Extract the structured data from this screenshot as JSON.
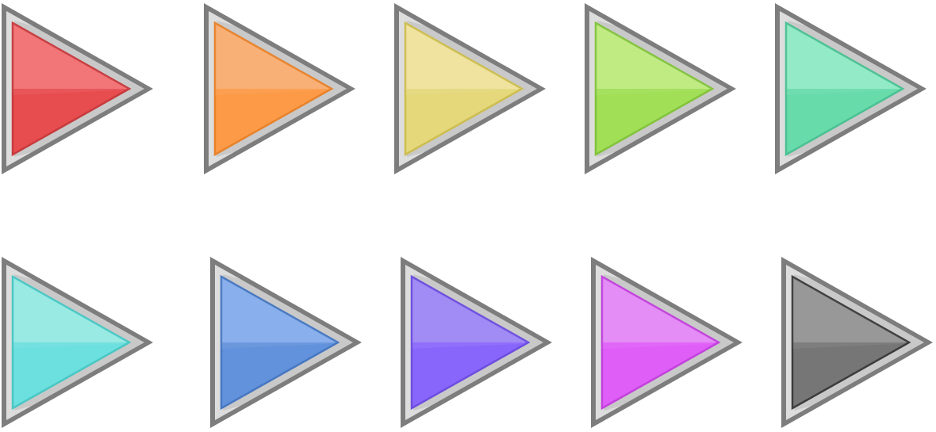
{
  "buttons": [
    {
      "icon": "play-triangle-icon",
      "color_name": "red",
      "fill_top": "#f26d70",
      "fill_bottom": "#e74c4f",
      "stroke": "#c73b3e"
    },
    {
      "icon": "play-triangle-icon",
      "color_name": "orange",
      "fill_top": "#f8ac6e",
      "fill_bottom": "#fc9a47",
      "stroke": "#e8822a"
    },
    {
      "icon": "play-triangle-icon",
      "color_name": "yellow",
      "fill_top": "#eee29a",
      "fill_bottom": "#e4d87b",
      "stroke": "#cdbd4f"
    },
    {
      "icon": "play-triangle-icon",
      "color_name": "lime",
      "fill_top": "#bdea7c",
      "fill_bottom": "#a0df56",
      "stroke": "#82c33c"
    },
    {
      "icon": "play-triangle-icon",
      "color_name": "mint",
      "fill_top": "#8de9c3",
      "fill_bottom": "#68dbaa",
      "stroke": "#49c192"
    },
    {
      "icon": "play-triangle-icon",
      "color_name": "cyan",
      "fill_top": "#92e9e2",
      "fill_bottom": "#6cdfdf",
      "stroke": "#48c7c4"
    },
    {
      "icon": "play-triangle-icon",
      "color_name": "blue",
      "fill_top": "#82aceb",
      "fill_bottom": "#6292db",
      "stroke": "#4677c2"
    },
    {
      "icon": "play-triangle-icon",
      "color_name": "violet",
      "fill_top": "#9c84f4",
      "fill_bottom": "#8966fb",
      "stroke": "#6d4de0"
    },
    {
      "icon": "play-triangle-icon",
      "color_name": "magenta",
      "fill_top": "#e486f6",
      "fill_bottom": "#e05ef8",
      "stroke": "#c241dc"
    },
    {
      "icon": "play-triangle-icon",
      "color_name": "gray",
      "fill_top": "#929292",
      "fill_bottom": "#767676",
      "stroke": "#3c3c3c"
    }
  ],
  "frame": {
    "outer": "#7d7d7d",
    "inner": "#c9c9c9",
    "highlight": "#e6e6e6"
  }
}
